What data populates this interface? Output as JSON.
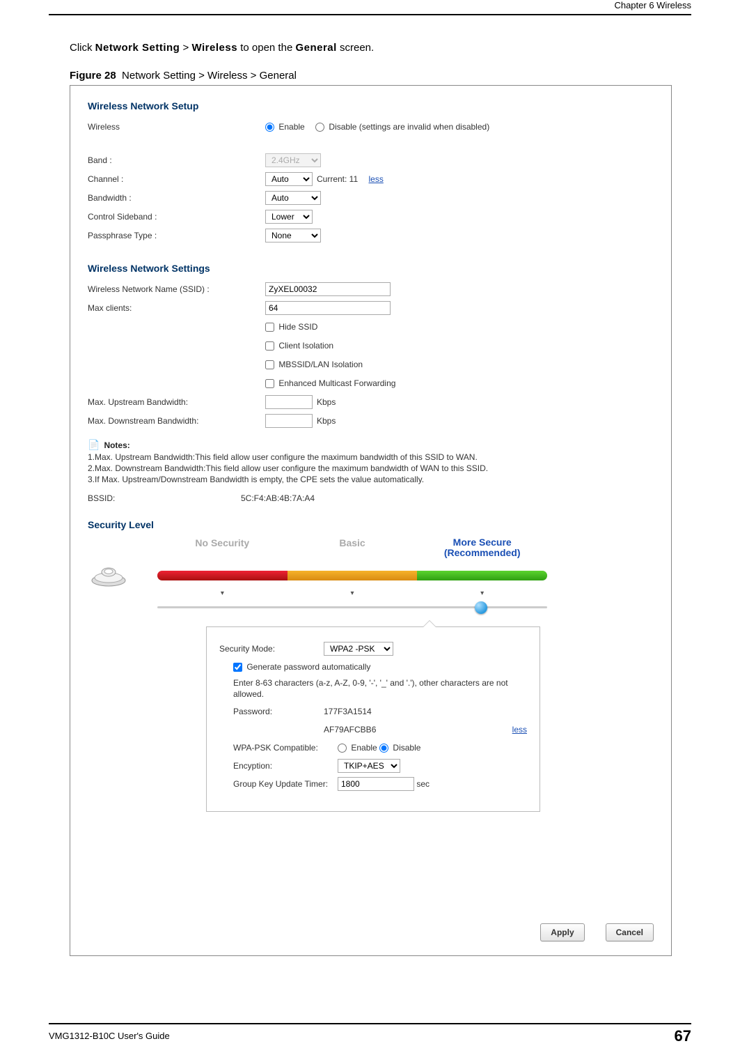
{
  "header": {
    "chapter": "Chapter 6 Wireless"
  },
  "intro": {
    "prefix": "Click ",
    "b1": "Network Setting",
    "sep1": " > ",
    "b2": "Wireless",
    "mid": " to open the ",
    "b3": "General",
    "suffix": " screen."
  },
  "figure": {
    "label": "Figure 28",
    "caption": "Network Setting > Wireless > General"
  },
  "setup": {
    "title": "Wireless Network Setup",
    "wireless_label": "Wireless",
    "enable": "Enable",
    "disable": "Disable (settings are invalid when disabled)",
    "band_label": "Band :",
    "band_value": "2.4GHz",
    "channel_label": "Channel :",
    "channel_value": "Auto",
    "channel_current": "Current: 11",
    "channel_less": "less",
    "bandwidth_label": "Bandwidth :",
    "bandwidth_value": "Auto",
    "sideband_label": "Control Sideband :",
    "sideband_value": "Lower",
    "passphrase_label": "Passphrase Type :",
    "passphrase_value": "None"
  },
  "settings": {
    "title": "Wireless Network Settings",
    "ssid_label": "Wireless Network Name (SSID) :",
    "ssid_value": "ZyXEL00032",
    "max_clients_label": "Max clients:",
    "max_clients_value": "64",
    "hide_ssid": "Hide SSID",
    "client_isolation": "Client Isolation",
    "mbssid": "MBSSID/LAN Isolation",
    "emf": "Enhanced Multicast Forwarding",
    "up_label": "Max. Upstream Bandwidth:",
    "down_label": "Max. Downstream Bandwidth:",
    "kbps": "Kbps"
  },
  "notes": {
    "header": "Notes:",
    "n1": "1.Max. Upstream Bandwidth:This field allow user configure the maximum bandwidth of this SSID to WAN.",
    "n2": "2.Max. Downstream Bandwidth:This field allow user configure the maximum bandwidth of WAN to this SSID.",
    "n3": "3.If Max. Upstream/Downstream Bandwidth is empty, the CPE sets the value automatically.",
    "bssid_label": "BSSID:",
    "bssid_value": "5C:F4:AB:4B:7A:A4"
  },
  "security": {
    "title": "Security Level",
    "no_security": "No Security",
    "basic": "Basic",
    "more_secure_l1": "More Secure",
    "more_secure_l2": "(Recommended)",
    "marker": "▾",
    "knob_left_pct": 83,
    "mode_label": "Security Mode:",
    "mode_value": "WPA2 -PSK",
    "gen_pw": "Generate password automatically",
    "help1": "Enter 8-63 characters (a-z, A-Z, 0-9, '-', '_' and '.'), other characters are not allowed.",
    "pw_label": "Password:",
    "pw_value1": "177F3A1514",
    "pw_value2": "AF79AFCBB6",
    "pw_less": "less",
    "wpa_compat_label": "WPA-PSK Compatible:",
    "enable": "Enable",
    "disable": "Disable",
    "enc_label": "Encyption:",
    "enc_value": "TKIP+AES",
    "gkut_label": "Group Key Update Timer:",
    "gkut_value": "1800",
    "sec": "sec"
  },
  "buttons": {
    "apply": "Apply",
    "cancel": "Cancel"
  },
  "footer": {
    "left": "VMG1312-B10C User's Guide",
    "page": "67"
  }
}
